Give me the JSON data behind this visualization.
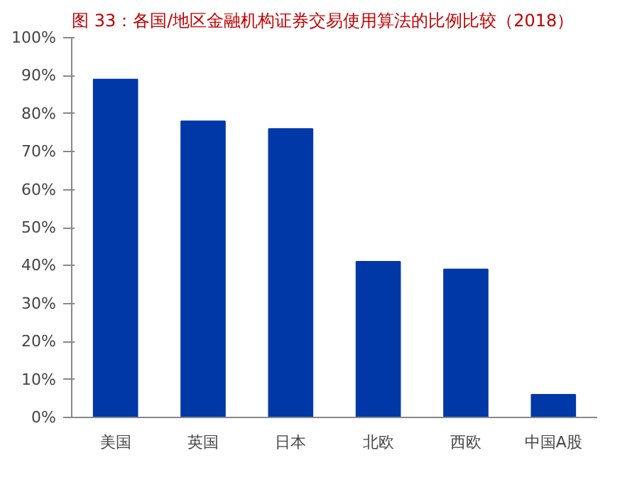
{
  "chart_data": {
    "type": "bar",
    "title": "图 33：各国/地区金融机构证券交易使用算法的比例比较（2018）",
    "categories": [
      "美国",
      "英国",
      "日本",
      "北欧",
      "西欧",
      "中国A股"
    ],
    "values": [
      89,
      78,
      76,
      41,
      39,
      6
    ],
    "color": "#0038a8",
    "ylim": [
      0,
      100
    ],
    "yticks": [
      {
        "value": 0,
        "label": "0%"
      },
      {
        "value": 10,
        "label": "10%"
      },
      {
        "value": 20,
        "label": "20%"
      },
      {
        "value": 30,
        "label": "30%"
      },
      {
        "value": 40,
        "label": "40%"
      },
      {
        "value": 50,
        "label": "50%"
      },
      {
        "value": 60,
        "label": "60%"
      },
      {
        "value": 70,
        "label": "70%"
      },
      {
        "value": 80,
        "label": "80%"
      },
      {
        "value": 90,
        "label": "90%"
      },
      {
        "value": 100,
        "label": "100%"
      }
    ],
    "grid": false
  }
}
